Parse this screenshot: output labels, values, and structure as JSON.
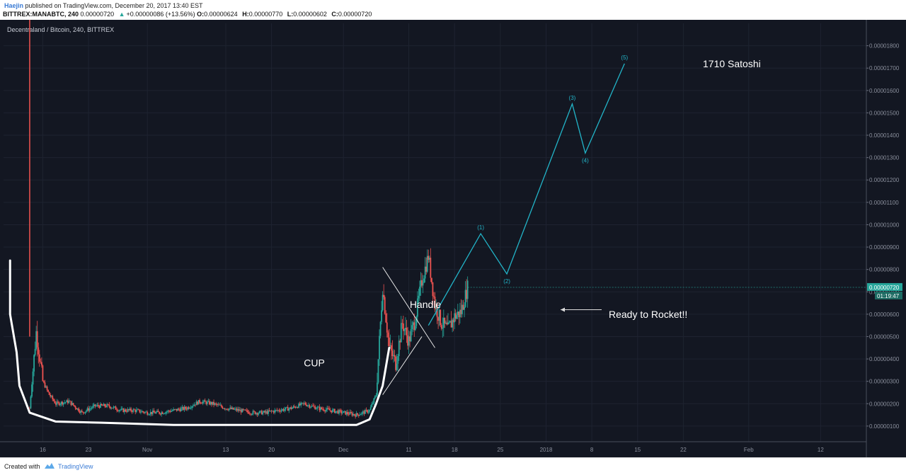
{
  "header": {
    "author": "Haejin",
    "published": "published on TradingView.com, December 20, 2017 13:40 EST",
    "symbol": "BITTREX:MANABTC, 240",
    "price": "0.00000720",
    "change": "+0.00000086 (+13.56%)",
    "open_label": "O:",
    "open": "0.00000624",
    "high_label": "H:",
    "high": "0.00000770",
    "low_label": "L:",
    "low": "0.00000602",
    "close_label": "C:",
    "close": "0.00000720"
  },
  "chart_title": "Decentraland / Bitcoin, 240, BITTREX",
  "footer": {
    "created": "Created with",
    "brand": "TradingView"
  },
  "colors": {
    "background": "#131722",
    "grid": "#1e2330",
    "up": "#26a69a",
    "down": "#ef5350",
    "wave": "#22b4c8",
    "annotation": "#ffffff",
    "price_tag": "#26a69a"
  },
  "chart_data": {
    "type": "candlestick",
    "title": "Decentraland / Bitcoin, 240, BITTREX",
    "y_unit": "BTC",
    "yticks": [
      "0.00000100",
      "0.00000200",
      "0.00000300",
      "0.00000400",
      "0.00000500",
      "0.00000600",
      "0.00000700",
      "0.00000800",
      "0.00000900",
      "0.00001000",
      "0.00001100",
      "0.00001200",
      "0.00001300",
      "0.00001400",
      "0.00001500",
      "0.00001600",
      "0.00001700",
      "0.00001800"
    ],
    "ytick_values": [
      1,
      2,
      3,
      4,
      5,
      6,
      7,
      8,
      9,
      10,
      11,
      12,
      13,
      14,
      15,
      16,
      17,
      18
    ],
    "value_scale": "1e-6 BTC",
    "ylim": [
      0.3,
      19.0
    ],
    "x_range_days": [
      "2017-10-10",
      "2018-02-19"
    ],
    "xticks": [
      {
        "label": "16",
        "date": "2017-10-16"
      },
      {
        "label": "23",
        "date": "2017-10-23"
      },
      {
        "label": "Nov",
        "date": "2017-11-01"
      },
      {
        "label": "13",
        "date": "2017-11-13"
      },
      {
        "label": "20",
        "date": "2017-11-20"
      },
      {
        "label": "Dec",
        "date": "2017-12-01"
      },
      {
        "label": "11",
        "date": "2017-12-11"
      },
      {
        "label": "18",
        "date": "2017-12-18"
      },
      {
        "label": "25",
        "date": "2017-12-25"
      },
      {
        "label": "2018",
        "date": "2018-01-01"
      },
      {
        "label": "8",
        "date": "2018-01-08"
      },
      {
        "label": "15",
        "date": "2018-01-15"
      },
      {
        "label": "22",
        "date": "2018-01-22"
      },
      {
        "label": "Feb",
        "date": "2018-02-01"
      },
      {
        "label": "12",
        "date": "2018-02-12"
      }
    ],
    "price_path": [
      [
        "2017-10-14",
        1.8
      ],
      [
        "2017-10-15",
        5.2
      ],
      [
        "2017-10-16",
        3.0
      ],
      [
        "2017-10-17",
        2.4
      ],
      [
        "2017-10-18",
        2.0
      ],
      [
        "2017-10-20",
        2.1
      ],
      [
        "2017-10-22",
        1.6
      ],
      [
        "2017-10-24",
        1.9
      ],
      [
        "2017-10-26",
        1.9
      ],
      [
        "2017-10-28",
        1.7
      ],
      [
        "2017-10-30",
        1.7
      ],
      [
        "2017-11-01",
        1.6
      ],
      [
        "2017-11-03",
        1.6
      ],
      [
        "2017-11-05",
        1.7
      ],
      [
        "2017-11-07",
        1.8
      ],
      [
        "2017-11-09",
        2.1
      ],
      [
        "2017-11-11",
        2.0
      ],
      [
        "2017-11-13",
        1.8
      ],
      [
        "2017-11-15",
        1.7
      ],
      [
        "2017-11-17",
        1.6
      ],
      [
        "2017-11-19",
        1.6
      ],
      [
        "2017-11-21",
        1.7
      ],
      [
        "2017-11-23",
        1.8
      ],
      [
        "2017-11-25",
        2.0
      ],
      [
        "2017-11-27",
        1.8
      ],
      [
        "2017-11-29",
        1.7
      ],
      [
        "2017-12-01",
        1.6
      ],
      [
        "2017-12-03",
        1.5
      ],
      [
        "2017-12-05",
        1.7
      ],
      [
        "2017-12-06",
        2.4
      ],
      [
        "2017-12-07",
        7.2
      ],
      [
        "2017-12-08",
        4.5
      ],
      [
        "2017-12-09",
        3.8
      ],
      [
        "2017-12-10",
        5.6
      ],
      [
        "2017-12-11",
        4.8
      ],
      [
        "2017-12-12",
        5.8
      ],
      [
        "2017-12-13",
        7.5
      ],
      [
        "2017-12-14",
        8.6
      ],
      [
        "2017-12-15",
        6.4
      ],
      [
        "2017-12-16",
        5.6
      ],
      [
        "2017-12-17",
        5.3
      ],
      [
        "2017-12-18",
        5.9
      ],
      [
        "2017-12-19",
        6.1
      ],
      [
        "2017-12-20",
        7.2
      ]
    ],
    "current_price": "0.00000720",
    "countdown": "01:19:47",
    "wave_projection": [
      {
        "date": "2017-12-14",
        "value": 5.5,
        "label": ""
      },
      {
        "date": "2017-12-22",
        "value": 9.6,
        "label": "(1)"
      },
      {
        "date": "2017-12-26",
        "value": 7.8,
        "label": "(2)"
      },
      {
        "date": "2018-01-05",
        "value": 15.4,
        "label": "(3)"
      },
      {
        "date": "2018-01-07",
        "value": 13.2,
        "label": "(4)"
      },
      {
        "date": "2018-01-13",
        "value": 17.2,
        "label": "(5)"
      }
    ],
    "annotations": {
      "cup": "CUP",
      "handle": "Handle",
      "ready": "Ready to Rocket!!",
      "target": "1710 Satoshi"
    }
  }
}
